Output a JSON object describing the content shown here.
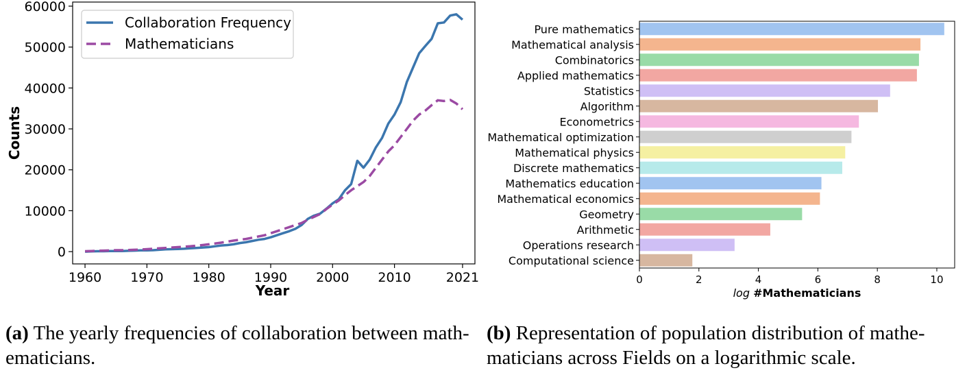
{
  "chart_data": [
    {
      "type": "line",
      "xlabel": "Year",
      "ylabel": "Counts",
      "xlim": [
        1958,
        2023
      ],
      "ylim": [
        -3000,
        61000
      ],
      "xticks": [
        1960,
        1970,
        1980,
        1990,
        2000,
        2010,
        2021
      ],
      "yticks": [
        0,
        10000,
        20000,
        30000,
        40000,
        50000,
        60000
      ],
      "legend_position": "top-left",
      "grid": false,
      "series": [
        {
          "name": "Collaboration Frequency",
          "color": "#3b76ae",
          "style": "solid",
          "x": [
            1960,
            1961,
            1962,
            1963,
            1964,
            1965,
            1966,
            1967,
            1968,
            1969,
            1970,
            1971,
            1972,
            1973,
            1974,
            1975,
            1976,
            1977,
            1978,
            1979,
            1980,
            1981,
            1982,
            1983,
            1984,
            1985,
            1986,
            1987,
            1988,
            1989,
            1990,
            1991,
            1992,
            1993,
            1994,
            1995,
            1996,
            1997,
            1998,
            1999,
            2000,
            2001,
            2002,
            2003,
            2004,
            2005,
            2006,
            2007,
            2008,
            2009,
            2010,
            2011,
            2012,
            2013,
            2014,
            2015,
            2016,
            2017,
            2018,
            2019,
            2020,
            2021
          ],
          "y": [
            0,
            50,
            100,
            100,
            150,
            150,
            150,
            200,
            250,
            300,
            300,
            350,
            450,
            550,
            600,
            650,
            700,
            800,
            900,
            1000,
            1100,
            1300,
            1500,
            1600,
            1800,
            2100,
            2300,
            2600,
            2900,
            3100,
            3500,
            4000,
            4500,
            5000,
            5600,
            6500,
            8000,
            8800,
            9300,
            10500,
            11800,
            12800,
            15000,
            16500,
            22200,
            20500,
            22500,
            25500,
            27800,
            31300,
            33500,
            36500,
            41500,
            45000,
            48500,
            50300,
            52000,
            55800,
            56000,
            57700,
            58000,
            56700
          ]
        },
        {
          "name": "Mathematicians",
          "color": "#9b4aa3",
          "style": "dashed",
          "x": [
            1960,
            1961,
            1962,
            1963,
            1964,
            1965,
            1966,
            1967,
            1968,
            1969,
            1970,
            1971,
            1972,
            1973,
            1974,
            1975,
            1976,
            1977,
            1978,
            1979,
            1980,
            1981,
            1982,
            1983,
            1984,
            1985,
            1986,
            1987,
            1988,
            1989,
            1990,
            1991,
            1992,
            1993,
            1994,
            1995,
            1996,
            1997,
            1998,
            1999,
            2000,
            2001,
            2002,
            2003,
            2004,
            2005,
            2006,
            2007,
            2008,
            2009,
            2010,
            2011,
            2012,
            2013,
            2014,
            2015,
            2016,
            2017,
            2018,
            2019,
            2020,
            2021
          ],
          "y": [
            100,
            150,
            200,
            250,
            300,
            350,
            350,
            400,
            450,
            500,
            600,
            700,
            800,
            900,
            1000,
            1100,
            1200,
            1300,
            1450,
            1600,
            1800,
            2000,
            2200,
            2450,
            2700,
            2900,
            3100,
            3400,
            3700,
            4000,
            4500,
            5000,
            5500,
            6000,
            6500,
            7000,
            7800,
            8500,
            9200,
            10400,
            11500,
            12500,
            13800,
            15000,
            16000,
            17000,
            18500,
            20500,
            22500,
            24500,
            26000,
            28000,
            30000,
            32000,
            33500,
            34500,
            35800,
            37000,
            36800,
            37100,
            36200,
            34800
          ]
        }
      ]
    },
    {
      "type": "bar",
      "orientation": "horizontal",
      "xlabel_prefix": "log",
      "xlabel_main": "#Mathematicians",
      "xlim": [
        0,
        10.6
      ],
      "xticks": [
        0,
        2,
        4,
        6,
        8,
        10
      ],
      "grid": false,
      "categories": [
        "Pure mathematics",
        "Mathematical analysis",
        "Combinatorics",
        "Applied mathematics",
        "Statistics",
        "Algorithm",
        "Econometrics",
        "Mathematical optimization",
        "Mathematical physics",
        "Discrete mathematics",
        "Mathematics education",
        "Mathematical economics",
        "Geometry",
        "Arithmetic",
        "Operations research",
        "Computational science"
      ],
      "values": [
        10.25,
        9.45,
        9.4,
        9.33,
        8.43,
        8.02,
        7.38,
        7.13,
        6.92,
        6.82,
        6.12,
        6.07,
        5.47,
        4.4,
        3.2,
        1.78
      ],
      "colors": [
        "#a1c4f0",
        "#f4b58e",
        "#99dba7",
        "#f2a7a2",
        "#cfbff5",
        "#d7b7a0",
        "#f5b8e0",
        "#cfcfcf",
        "#f5f0a2",
        "#b7eaea",
        "#a1c4f0",
        "#f4b58e",
        "#99dba7",
        "#f2a7a2",
        "#cfbff5",
        "#d7b7a0"
      ]
    }
  ],
  "captions": {
    "a_label": "(a)",
    "a_line1": "The yearly frequencies of collaboration between math-",
    "a_line2": "ematicians.",
    "b_label": "(b)",
    "b_line1": "Representation of population distribution of mathe-",
    "b_line2": "maticians across Fields on a logarithmic scale."
  }
}
